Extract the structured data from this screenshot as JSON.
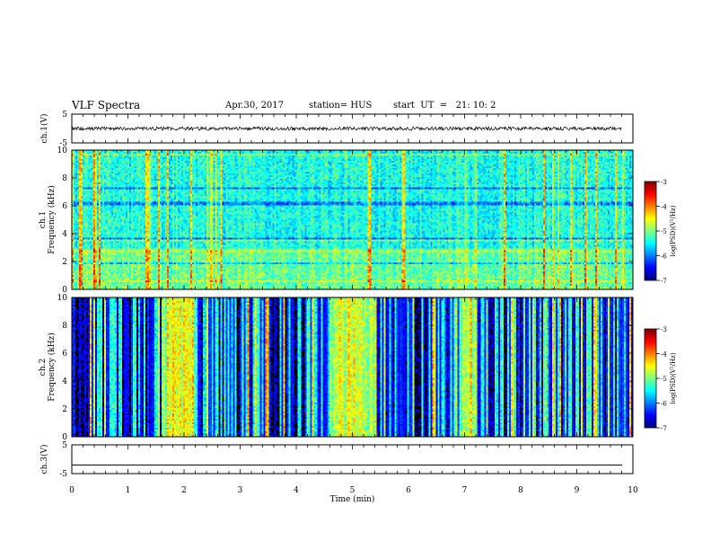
{
  "header": {
    "title": "VLF Spectra",
    "date": "Apr.30, 2017",
    "station": "station= HUS",
    "start": "start  UT  =   21: 10: 2"
  },
  "chart_data": [
    {
      "type": "line",
      "name": "ch1-waveform",
      "ylabel": "ch.1(V)",
      "ylim": [
        -5,
        5
      ],
      "yticks": [
        "5",
        "-5"
      ],
      "xlim": [
        0,
        10
      ],
      "level": 0,
      "noise_amplitude": 0.6
    },
    {
      "type": "heatmap",
      "name": "ch1-spectrogram",
      "ylabel": "Frequency (kHz)",
      "channel_label": "ch.1",
      "ylim": [
        0,
        10
      ],
      "yticks": [
        "0",
        "2",
        "4",
        "6",
        "8",
        "10"
      ],
      "xlim": [
        0,
        10
      ],
      "colorbar": {
        "label": "log(PSD)(V²/Hz)",
        "range": [
          -7,
          -3
        ],
        "ticks": [
          "-3",
          "-4",
          "-5",
          "-6",
          "-7"
        ]
      }
    },
    {
      "type": "heatmap",
      "name": "ch2-spectrogram",
      "ylabel": "Frequency (kHz)",
      "channel_label": "ch.2",
      "ylim": [
        0,
        10
      ],
      "yticks": [
        "0",
        "2",
        "4",
        "6",
        "8",
        "10"
      ],
      "xlim": [
        0,
        10
      ],
      "colorbar": {
        "label": "log(PSD)(V²/Hz)",
        "range": [
          -7,
          -3
        ],
        "ticks": [
          "-3",
          "-4",
          "-5",
          "-6",
          "-7"
        ]
      }
    },
    {
      "type": "line",
      "name": "ch3-waveform",
      "ylabel": "ch.3(V)",
      "ylim": [
        -5,
        5
      ],
      "yticks": [
        "5",
        "-5"
      ],
      "xlim": [
        0,
        10
      ],
      "level": -2,
      "noise_amplitude": 0
    }
  ],
  "x_axis": {
    "label": "Time (min)",
    "ticks": [
      "0",
      "1",
      "2",
      "3",
      "4",
      "5",
      "6",
      "7",
      "8",
      "9",
      "10"
    ],
    "range": [
      0,
      10
    ]
  }
}
